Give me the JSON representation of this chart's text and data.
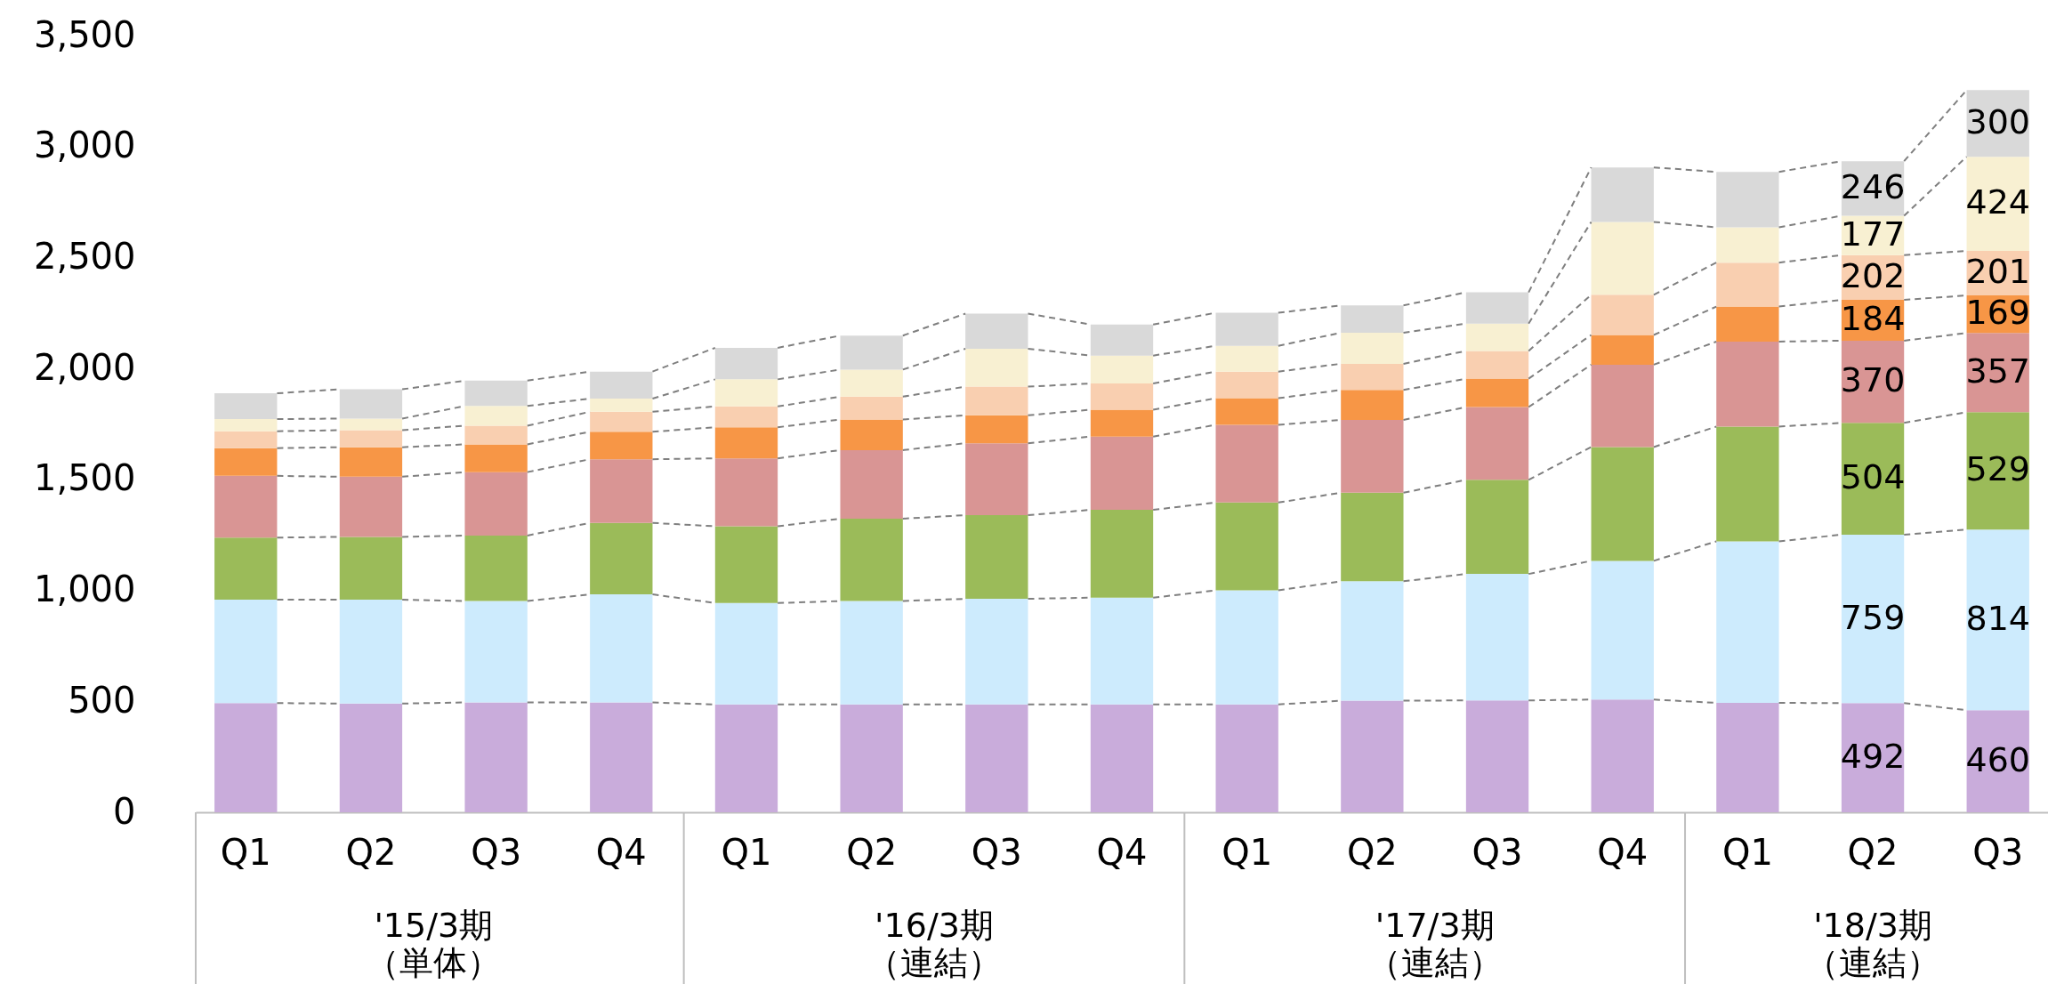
{
  "chart_data": {
    "type": "bar",
    "stacked": true,
    "categories": [
      "Q1",
      "Q2",
      "Q3",
      "Q4",
      "Q1",
      "Q2",
      "Q3",
      "Q4",
      "Q1",
      "Q2",
      "Q3",
      "Q4",
      "Q1",
      "Q2",
      "Q3"
    ],
    "series": [
      {
        "color": "#c9acdb",
        "values": [
          492,
          490,
          495,
          495,
          486,
          486,
          486,
          486,
          486,
          503,
          504,
          508,
          493,
          492,
          460
        ],
        "value_labels": [
          null,
          null,
          null,
          null,
          null,
          null,
          null,
          null,
          null,
          null,
          null,
          null,
          null,
          "492",
          "460"
        ]
      },
      {
        "color": "#cdebfd",
        "values": [
          466,
          468,
          457,
          487,
          457,
          466,
          476,
          481,
          514,
          538,
          570,
          625,
          728,
          759,
          814
        ],
        "value_labels": [
          null,
          null,
          null,
          null,
          null,
          null,
          null,
          null,
          null,
          null,
          null,
          null,
          null,
          "759",
          "814"
        ]
      },
      {
        "color": "#9bbb59",
        "values": [
          280,
          283,
          295,
          322,
          346,
          371,
          377,
          396,
          396,
          399,
          424,
          513,
          517,
          504,
          529
        ],
        "value_labels": [
          null,
          null,
          null,
          null,
          null,
          null,
          null,
          null,
          null,
          null,
          null,
          null,
          null,
          "504",
          "529"
        ]
      },
      {
        "color": "#d99594",
        "values": [
          278,
          271,
          286,
          287,
          306,
          309,
          324,
          330,
          350,
          328,
          328,
          371,
          383,
          370,
          357
        ],
        "value_labels": [
          null,
          null,
          null,
          null,
          null,
          null,
          null,
          null,
          null,
          null,
          null,
          null,
          null,
          "370",
          "357"
        ]
      },
      {
        "color": "#f79646",
        "values": [
          125,
          133,
          125,
          124,
          140,
          138,
          126,
          121,
          120,
          135,
          128,
          134,
          158,
          184,
          169
        ],
        "value_labels": [
          null,
          null,
          null,
          null,
          null,
          null,
          null,
          null,
          null,
          null,
          null,
          null,
          null,
          "184",
          "169"
        ]
      },
      {
        "color": "#f9cfb0",
        "values": [
          76,
          77,
          84,
          90,
          94,
          103,
          129,
          118,
          120,
          118,
          125,
          181,
          198,
          202,
          201
        ],
        "value_labels": [
          null,
          null,
          null,
          null,
          null,
          null,
          null,
          null,
          null,
          null,
          null,
          null,
          null,
          "202",
          "201"
        ]
      },
      {
        "color": "#f8f0d2",
        "values": [
          55,
          52,
          89,
          59,
          122,
          122,
          171,
          126,
          116,
          140,
          123,
          328,
          159,
          177,
          424
        ],
        "value_labels": [
          null,
          null,
          null,
          null,
          null,
          null,
          null,
          null,
          null,
          null,
          null,
          null,
          null,
          "177",
          "424"
        ]
      },
      {
        "color": "#d9d9d9",
        "values": [
          116,
          132,
          114,
          122,
          142,
          153,
          158,
          140,
          149,
          123,
          141,
          246,
          250,
          246,
          300
        ],
        "value_labels": [
          null,
          null,
          null,
          null,
          null,
          null,
          null,
          null,
          null,
          null,
          null,
          null,
          null,
          "246",
          "300"
        ]
      }
    ],
    "ylim": [
      0,
      3500
    ],
    "yticks": [
      0,
      500,
      {
        "value": 1000,
        "label": "1,000"
      },
      {
        "value": 1500,
        "label": "1,500"
      },
      {
        "value": 2000,
        "label": "2,000"
      },
      {
        "value": 2500,
        "label": "2,500"
      },
      {
        "value": 3000,
        "label": "3,000"
      },
      {
        "value": 3500,
        "label": "3,500"
      }
    ],
    "annotations": [
      "'15/3期（単体）",
      "'16/3期（連結）",
      "'17/3期（連結）",
      "'18/3期（連結）"
    ]
  }
}
